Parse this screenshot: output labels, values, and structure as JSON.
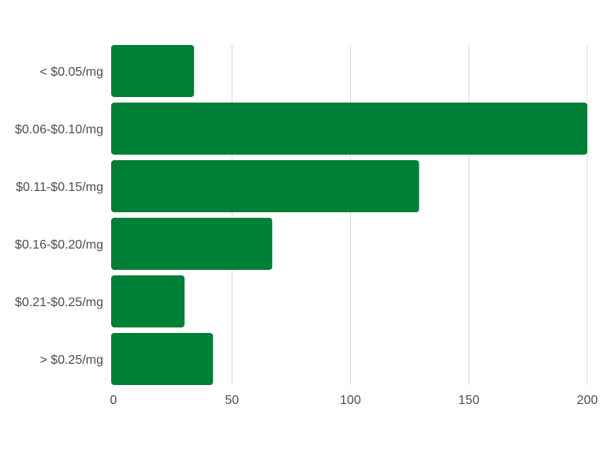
{
  "chart_data": {
    "type": "bar",
    "orientation": "horizontal",
    "categories": [
      "< $0.05/mg",
      "$0.06-$0.10/mg",
      "$0.11-$0.15/mg",
      "$0.16-$0.20/mg",
      "$0.21-$0.25/mg",
      "> $0.25/mg"
    ],
    "values": [
      34,
      200,
      129,
      67,
      30,
      42
    ],
    "xlim": [
      0,
      200
    ],
    "xticks": [
      0,
      50,
      100,
      150,
      200
    ],
    "title": "",
    "xlabel": "",
    "ylabel": "",
    "grid": "vertical",
    "legend": "none",
    "colors": {
      "bar": "#007f36",
      "grid": "#d9d9d9",
      "label": "#4d4d4d",
      "background": "#ffffff"
    }
  }
}
